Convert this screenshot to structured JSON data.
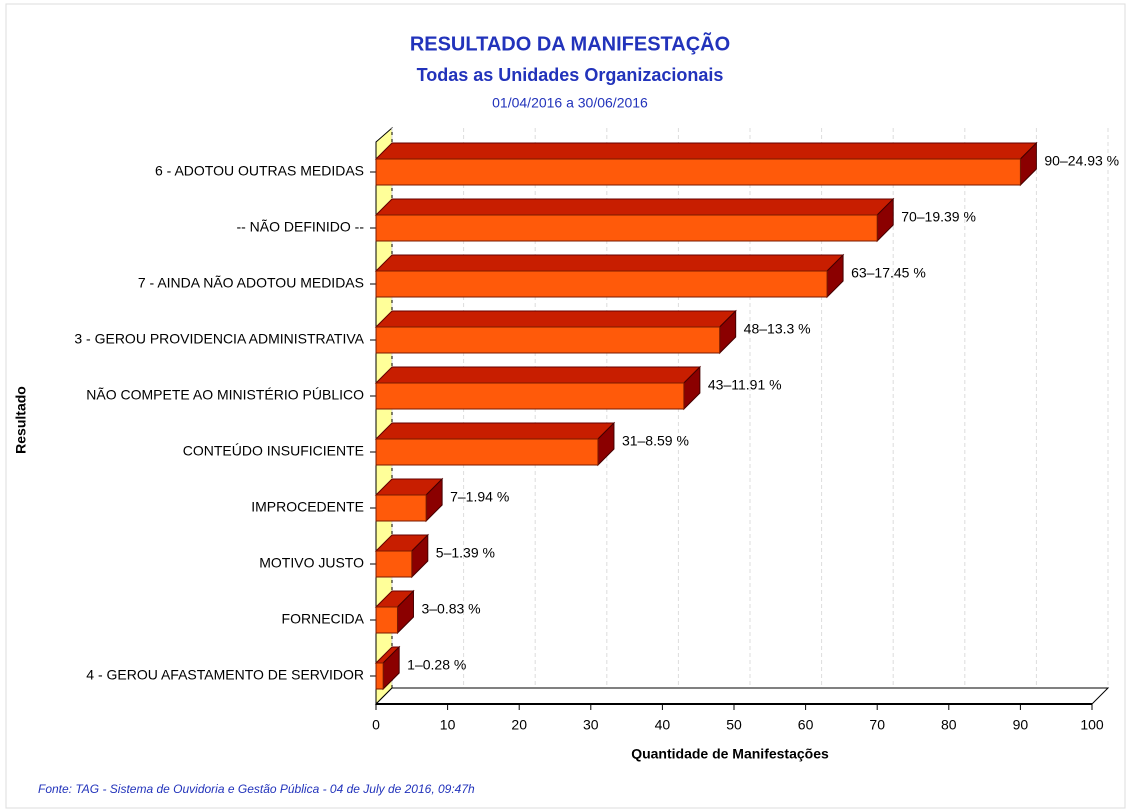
{
  "chart_data": {
    "type": "bar3d_horizontal",
    "title": "RESULTADO DA MANIFESTAÇÃO",
    "subtitle": "Todas as Unidades Organizacionais",
    "period": "01/04/2016 a 30/06/2016",
    "x_label": "Quantidade de Manifestações",
    "y_label": "Resultado",
    "source": "Fonte: TAG - Sistema de Ouvidoria e Gestão Pública -  04  de  July de 2016, 09:47h",
    "categories": [
      "6 - ADOTOU OUTRAS MEDIDAS",
      "-- NÃO DEFINIDO --",
      "7 - AINDA NÃO ADOTOU MEDIDAS",
      "3 - GEROU PROVIDENCIA ADMINISTRATIVA",
      "NÃO COMPETE AO MINISTÉRIO PÚBLICO",
      "CONTEÚDO INSUFICIENTE",
      "IMPROCEDENTE",
      "MOTIVO JUSTO",
      "FORNECIDA",
      "4 - GEROU AFASTAMENTO DE SERVIDOR"
    ],
    "values": [
      90,
      70,
      63,
      48,
      43,
      31,
      7,
      5,
      3,
      1
    ],
    "value_labels": [
      "90–24.93 %",
      "70–19.39 %",
      "63–17.45 %",
      "48–13.3 %",
      "43–11.91 %",
      "31–8.59 %",
      "7–1.94 %",
      "5–1.39 %",
      "3–0.83 %",
      "1–0.28 %"
    ],
    "color": "#ff5a0a",
    "xlim": [
      0,
      100
    ],
    "xticks": [
      0,
      10,
      20,
      30,
      40,
      50,
      60,
      70,
      80,
      90,
      100
    ],
    "grid": true
  }
}
